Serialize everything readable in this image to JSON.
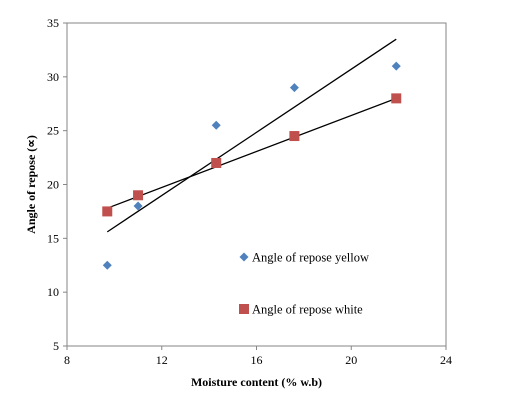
{
  "chart_data": {
    "type": "scatter",
    "xlabel": "Moisture content (% w.b)",
    "ylabel": "Angle of repose (∝)",
    "xlim": [
      8,
      24
    ],
    "ylim": [
      5,
      35
    ],
    "xticks": [
      "8",
      "12",
      "16",
      "20",
      "24"
    ],
    "yticks": [
      "5",
      "10",
      "15",
      "20",
      "25",
      "30",
      "35"
    ],
    "grid": false,
    "legend_position": "inside-lower-center",
    "series": [
      {
        "name": "Angle of repose yellow",
        "marker": "diamond",
        "color": "#4f81bd",
        "points": [
          [
            9.7,
            12.5
          ],
          [
            11.0,
            18.0
          ],
          [
            14.3,
            25.5
          ],
          [
            17.6,
            29.0
          ],
          [
            21.9,
            31.0
          ]
        ],
        "trendline": [
          [
            9.7,
            15.6
          ],
          [
            21.9,
            33.5
          ]
        ]
      },
      {
        "name": "Angle of repose white",
        "marker": "square",
        "color": "#c0504d",
        "points": [
          [
            9.7,
            17.5
          ],
          [
            11.0,
            19.0
          ],
          [
            14.3,
            22.0
          ],
          [
            17.6,
            24.5
          ],
          [
            21.9,
            28.0
          ]
        ],
        "trendline": [
          [
            9.7,
            17.8
          ],
          [
            21.9,
            28.0
          ]
        ]
      }
    ]
  }
}
